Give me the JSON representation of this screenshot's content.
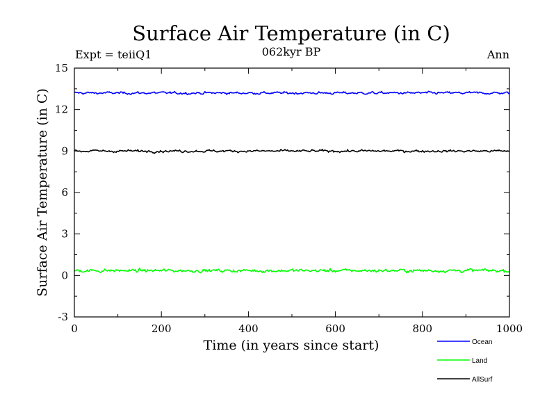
{
  "chart_data": {
    "type": "line",
    "title": "Surface Air Temperature (in C)",
    "subtitle": "062kyr BP",
    "top_left_label": "Expt = teiiQ1",
    "top_right_label": "Ann",
    "xlabel": "Time (in years since start)",
    "ylabel": "Surface Air Temperature (in C)",
    "xlim": [
      0,
      1000
    ],
    "ylim": [
      -3,
      15
    ],
    "xticks": [
      0,
      200,
      400,
      600,
      800,
      1000
    ],
    "yticks": [
      -3,
      0,
      3,
      6,
      9,
      12,
      15
    ],
    "legend_position": "bottom-right, below plot",
    "grid": false,
    "series": [
      {
        "name": "Ocean",
        "color": "#0000ff",
        "mean": 13.2,
        "variability": 0.12,
        "approx_range": [
          12.95,
          13.5
        ]
      },
      {
        "name": "Land",
        "color": "#00ff00",
        "mean": 0.35,
        "variability": 0.16,
        "approx_range": [
          -0.05,
          0.85
        ]
      },
      {
        "name": "AllSurf",
        "color": "#000000",
        "mean": 9.0,
        "variability": 0.12,
        "approx_range": [
          8.75,
          9.25
        ]
      }
    ]
  }
}
